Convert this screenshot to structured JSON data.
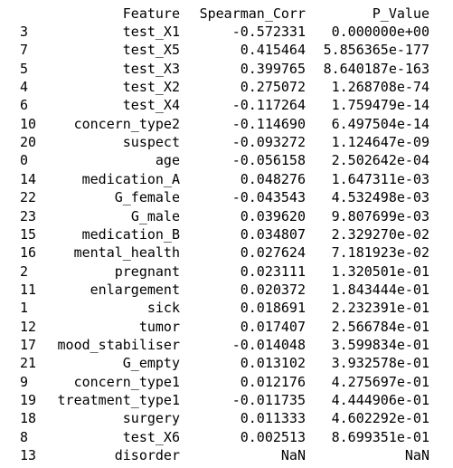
{
  "table": {
    "columns": {
      "feature": "Feature",
      "corr": "Spearman_Corr",
      "p": "P_Value"
    },
    "rows": [
      {
        "index": "3",
        "feature": "test_X1",
        "corr": "-0.572331",
        "p": "0.000000e+00"
      },
      {
        "index": "7",
        "feature": "test_X5",
        "corr": "0.415464",
        "p": "5.856365e-177"
      },
      {
        "index": "5",
        "feature": "test_X3",
        "corr": "0.399765",
        "p": "8.640187e-163"
      },
      {
        "index": "4",
        "feature": "test_X2",
        "corr": "0.275072",
        "p": "1.268708e-74"
      },
      {
        "index": "6",
        "feature": "test_X4",
        "corr": "-0.117264",
        "p": "1.759479e-14"
      },
      {
        "index": "10",
        "feature": "concern_type2",
        "corr": "-0.114690",
        "p": "6.497504e-14"
      },
      {
        "index": "20",
        "feature": "suspect",
        "corr": "-0.093272",
        "p": "1.124647e-09"
      },
      {
        "index": "0",
        "feature": "age",
        "corr": "-0.056158",
        "p": "2.502642e-04"
      },
      {
        "index": "14",
        "feature": "medication_A",
        "corr": "0.048276",
        "p": "1.647311e-03"
      },
      {
        "index": "22",
        "feature": "G_female",
        "corr": "-0.043543",
        "p": "4.532498e-03"
      },
      {
        "index": "23",
        "feature": "G_male",
        "corr": "0.039620",
        "p": "9.807699e-03"
      },
      {
        "index": "15",
        "feature": "medication_B",
        "corr": "0.034807",
        "p": "2.329270e-02"
      },
      {
        "index": "16",
        "feature": "mental_health",
        "corr": "0.027624",
        "p": "7.181923e-02"
      },
      {
        "index": "2",
        "feature": "pregnant",
        "corr": "0.023111",
        "p": "1.320501e-01"
      },
      {
        "index": "11",
        "feature": "enlargement",
        "corr": "0.020372",
        "p": "1.843444e-01"
      },
      {
        "index": "1",
        "feature": "sick",
        "corr": "0.018691",
        "p": "2.232391e-01"
      },
      {
        "index": "12",
        "feature": "tumor",
        "corr": "0.017407",
        "p": "2.566784e-01"
      },
      {
        "index": "17",
        "feature": "mood_stabiliser",
        "corr": "-0.014048",
        "p": "3.599834e-01"
      },
      {
        "index": "21",
        "feature": "G_empty",
        "corr": "0.013102",
        "p": "3.932578e-01"
      },
      {
        "index": "9",
        "feature": "concern_type1",
        "corr": "0.012176",
        "p": "4.275697e-01"
      },
      {
        "index": "19",
        "feature": "treatment_type1",
        "corr": "-0.011735",
        "p": "4.444906e-01"
      },
      {
        "index": "18",
        "feature": "surgery",
        "corr": "0.011333",
        "p": "4.602292e-01"
      },
      {
        "index": "8",
        "feature": "test_X6",
        "corr": "0.002513",
        "p": "8.699351e-01"
      },
      {
        "index": "13",
        "feature": "disorder",
        "corr": "NaN",
        "p": "NaN"
      }
    ]
  }
}
